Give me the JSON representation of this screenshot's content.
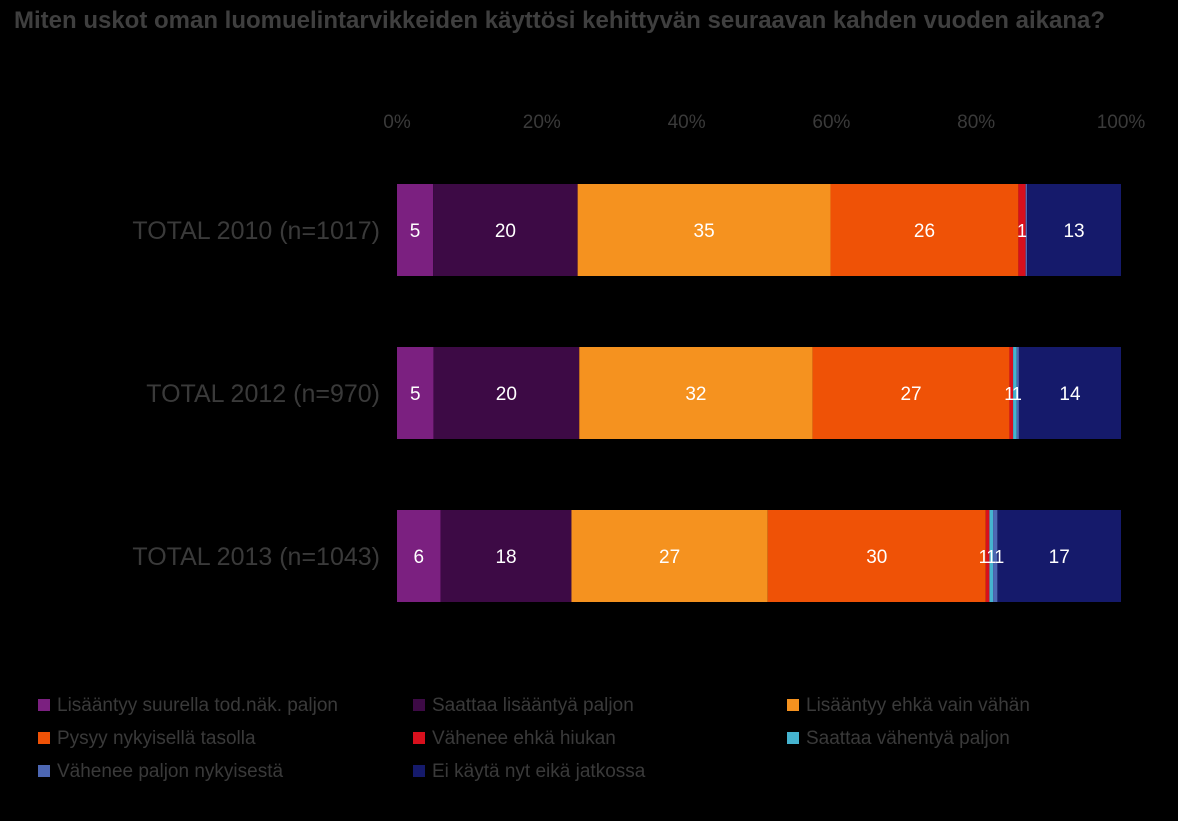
{
  "chart_data": {
    "type": "bar",
    "orientation": "horizontal",
    "stacked": true,
    "percent_stacked": true,
    "title": "Miten uskot oman luomuelintarvikkeiden käyttösi kehittyvän seuraavan kahden vuoden aikana?",
    "categories": [
      "TOTAL 2010 (n=1017)",
      "TOTAL 2012 (n=970)",
      "TOTAL 2013 (n=1043)"
    ],
    "x_ticks": [
      "0%",
      "20%",
      "40%",
      "60%",
      "80%",
      "100%"
    ],
    "xlim": [
      0,
      100
    ],
    "x_axis_position": "top",
    "grid": false,
    "legend_position": "bottom",
    "series": [
      {
        "name": "Lisääntyy suurella tod.näk. paljon",
        "color": "#7b2080",
        "values": [
          5,
          5,
          6
        ],
        "labels": [
          "5",
          "5",
          "6"
        ]
      },
      {
        "name": "Saattaa lisääntyä paljon",
        "color": "#3d0a45",
        "values": [
          20,
          20,
          18
        ],
        "labels": [
          "20",
          "20",
          "18"
        ]
      },
      {
        "name": "Lisääntyy ehkä vain vähän",
        "color": "#f5921f",
        "values": [
          35,
          32,
          27
        ],
        "labels": [
          "35",
          "32",
          "27"
        ]
      },
      {
        "name": "Pysyy nykyisellä tasolla",
        "color": "#ef5206",
        "values": [
          26,
          27,
          30
        ],
        "labels": [
          "26",
          "27",
          "30"
        ]
      },
      {
        "name": "Vähenee ehkä hiukan",
        "color": "#d8101d",
        "values": [
          1,
          0.5,
          0.5
        ],
        "labels": [
          "1",
          "1",
          "1"
        ]
      },
      {
        "name": "Saattaa vähentyä paljon",
        "color": "#45b3cf",
        "values": [
          0,
          0.5,
          0.5
        ],
        "labels": [
          "",
          "1",
          "1"
        ]
      },
      {
        "name": "Vähenee paljon nykyisestä",
        "color": "#4d67b3",
        "values": [
          0.2,
          0.3,
          0.6
        ],
        "labels": [
          "",
          "",
          "1"
        ]
      },
      {
        "name": "Ei käytä nyt eikä jatkossa",
        "color": "#151a6b",
        "values": [
          13,
          14,
          17
        ],
        "labels": [
          "13",
          "14",
          "17"
        ]
      }
    ]
  }
}
